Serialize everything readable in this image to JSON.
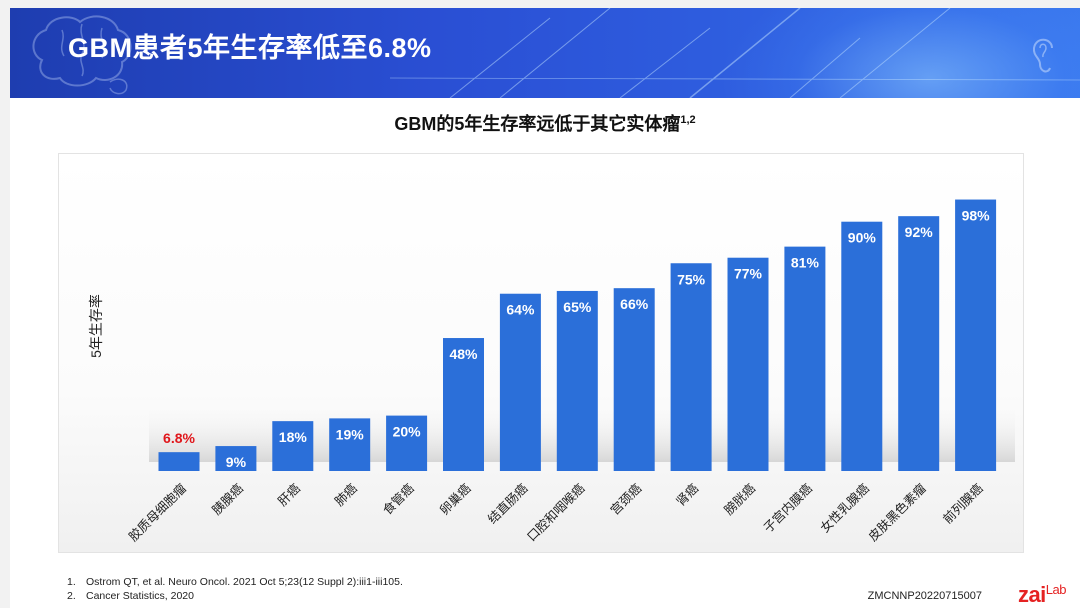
{
  "slide": {
    "title": "GBM患者5年生存率低至6.8%",
    "subtitle": "GBM的5年生存率远低于其它实体瘤",
    "subtitle_sup": "1,2",
    "footnotes": [
      {
        "num": "1.",
        "text": "Ostrom QT, et al. Neuro Oncol. 2021 Oct 5;23(12 Suppl 2):iii1-iii105."
      },
      {
        "num": "2.",
        "text": "Cancer Statistics, 2020"
      }
    ],
    "doc_code": "ZMCNNP20220715007",
    "logo": {
      "main": "zai",
      "suffix": "Lab"
    }
  },
  "colors": {
    "bar": "#2b6fd9",
    "label_normal": "#ffffff",
    "label_highlight": "#e0161b",
    "banner": "#2a4fd4"
  },
  "chart_data": {
    "type": "bar",
    "title": "GBM的5年生存率远低于其它实体瘤",
    "ylabel": "5年生存率",
    "ylim": [
      0,
      100
    ],
    "grid": false,
    "categories": [
      "胶质母细胞瘤",
      "胰腺癌",
      "肝癌",
      "肺癌",
      "食管癌",
      "卵巢癌",
      "结直肠癌",
      "口腔和咽喉癌",
      "宫颈癌",
      "肾癌",
      "膀胱癌",
      "子宫内膜癌",
      "女性乳腺癌",
      "皮肤黑色素瘤",
      "前列腺癌"
    ],
    "values": [
      6.8,
      9,
      18,
      19,
      20,
      48,
      64,
      65,
      66,
      75,
      77,
      81,
      90,
      92,
      98
    ],
    "value_labels": [
      "6.8%",
      "9%",
      "18%",
      "19%",
      "20%",
      "48%",
      "64%",
      "65%",
      "66%",
      "75%",
      "77%",
      "81%",
      "90%",
      "92%",
      "98%"
    ],
    "highlight_index": 0
  }
}
